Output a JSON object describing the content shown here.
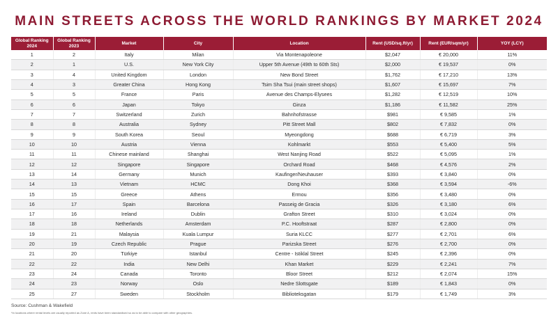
{
  "title": "MAIN STREETS ACROSS THE WORLD RANKINGS BY MARKET 2024",
  "table": {
    "headers": [
      "Global Ranking 2024",
      "Global Ranking 2023",
      "Market",
      "City",
      "Location",
      "Rent (USD/sq.ft/yr)",
      "Rent (EUR/sqm/yr)",
      "YOY (LCY)"
    ],
    "rows": [
      [
        "1",
        "2",
        "Italy",
        "Milan",
        "Via Montenapoleone",
        "$2,047",
        "€ 20,000",
        "11%"
      ],
      [
        "2",
        "1",
        "U.S.",
        "New York City",
        "Upper 5th Avenue (49th to 60th Sts)",
        "$2,000",
        "€ 19,537",
        "0%"
      ],
      [
        "3",
        "4",
        "United Kingdom",
        "London",
        "New Bond Street",
        "$1,762",
        "€ 17,210",
        "13%"
      ],
      [
        "4",
        "3",
        "Greater China",
        "Hong Kong",
        "Tsim Sha Tsui (main street shops)",
        "$1,607",
        "€ 15,697",
        "7%"
      ],
      [
        "5",
        "5",
        "France",
        "Paris",
        "Avenue des Champs-Elysees",
        "$1,282",
        "€ 12,519",
        "10%"
      ],
      [
        "6",
        "6",
        "Japan",
        "Tokyo",
        "Ginza",
        "$1,186",
        "€ 11,582",
        "25%"
      ],
      [
        "7",
        "7",
        "Switzerland",
        "Zurich",
        "Bahnhofstrasse",
        "$981",
        "€ 9,585",
        "1%"
      ],
      [
        "8",
        "8",
        "Australia",
        "Sydney",
        "Pitt Street Mall",
        "$802",
        "€ 7,832",
        "0%"
      ],
      [
        "9",
        "9",
        "South Korea",
        "Seoul",
        "Myeongdong",
        "$688",
        "€ 6,719",
        "3%"
      ],
      [
        "10",
        "10",
        "Austria",
        "Vienna",
        "Kohlmarkt",
        "$553",
        "€ 5,400",
        "5%"
      ],
      [
        "11",
        "11",
        "Chinese mainland",
        "Shanghai",
        "West Nanjing Road",
        "$522",
        "€ 5,095",
        "1%"
      ],
      [
        "12",
        "12",
        "Singapore",
        "Singapore",
        "Orchard Road",
        "$468",
        "€ 4,576",
        "2%"
      ],
      [
        "13",
        "14",
        "Germany",
        "Munich",
        "Kaufinger/Neuhauser",
        "$393",
        "€ 3,840",
        "0%"
      ],
      [
        "14",
        "13",
        "Vietnam",
        "HCMC",
        "Dong Khoi",
        "$368",
        "€ 3,594",
        "-6%"
      ],
      [
        "15",
        "15",
        "Greece",
        "Athens",
        "Ermou",
        "$356",
        "€ 3,480",
        "0%"
      ],
      [
        "16",
        "17",
        "Spain",
        "Barcelona",
        "Passeig de Gracia",
        "$326",
        "€ 3,180",
        "6%"
      ],
      [
        "17",
        "16",
        "Ireland",
        "Dublin",
        "Grafton Street",
        "$310",
        "€ 3,024",
        "0%"
      ],
      [
        "18",
        "18",
        "Netherlands",
        "Amsterdam",
        "P.C. Hooftstraat",
        "$287",
        "€ 2,800",
        "0%"
      ],
      [
        "19",
        "21",
        "Malaysia",
        "Kuala Lumpur",
        "Suria KLCC",
        "$277",
        "€ 2,701",
        "6%"
      ],
      [
        "20",
        "19",
        "Czech Republic",
        "Prague",
        "Parizska Street",
        "$276",
        "€ 2,700",
        "0%"
      ],
      [
        "21",
        "20",
        "Türkiye",
        "Istanbul",
        "Centre - Istiklal Street",
        "$245",
        "€ 2,396",
        "0%"
      ],
      [
        "22",
        "22",
        "India",
        "New Delhi",
        "Khan Market",
        "$229",
        "€ 2,241",
        "7%"
      ],
      [
        "23",
        "24",
        "Canada",
        "Toronto",
        "Bloor Street",
        "$212",
        "€ 2,074",
        "15%"
      ],
      [
        "24",
        "23",
        "Norway",
        "Oslo",
        "Nedre Slottsgate",
        "$189",
        "€ 1,843",
        "0%"
      ],
      [
        "25",
        "27",
        "Sweden",
        "Stockholm",
        "Biblioteksgatan",
        "$179",
        "€ 1,749",
        "3%"
      ]
    ]
  },
  "source": "Source: Cushman & Wakefield",
  "footnote": "*In locations where rental levels are usually reported as Zone A, rents have been standardised so as to be able to compare with other geographies.",
  "colors": {
    "brand": "#9b1d36",
    "title": "#8e1b33",
    "row_alt": "#f1f1f2"
  }
}
